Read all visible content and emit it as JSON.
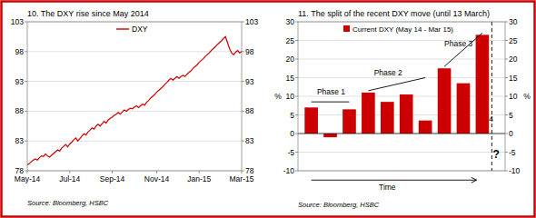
{
  "chart_data": [
    {
      "type": "line",
      "title": "10. The DXY rise since May 2014",
      "source": "Source: Bloomberg, HSBC",
      "categories": [
        "May-14",
        null,
        null,
        null,
        null,
        null,
        null,
        null,
        null,
        null,
        null,
        null,
        null,
        null,
        null,
        null,
        null,
        null,
        null,
        null,
        null,
        "Jul-14",
        null,
        null,
        null,
        null,
        null,
        null,
        null,
        null,
        null,
        null,
        null,
        null,
        null,
        null,
        null,
        null,
        null,
        null,
        null,
        null,
        "Sep-14",
        null,
        null,
        null,
        null,
        null,
        null,
        null,
        null,
        null,
        null,
        null,
        null,
        null,
        null,
        null,
        null,
        null,
        null,
        null,
        null,
        null,
        "Nov-14",
        null,
        null,
        null,
        null,
        null,
        null,
        null,
        null,
        null,
        null,
        null,
        null,
        null,
        null,
        null,
        null,
        null,
        null,
        null,
        null,
        "Jan-15",
        null,
        null,
        null,
        null,
        null,
        null,
        null,
        null,
        null,
        null,
        null,
        null,
        null,
        null,
        null,
        null,
        null,
        null,
        null,
        null,
        "Mar-15"
      ],
      "series": [
        {
          "name": "DXY",
          "color": "#cc0000",
          "values": [
            79.0,
            79.2,
            79.5,
            79.8,
            80.0,
            79.8,
            80.2,
            80.5,
            80.4,
            80.8,
            80.5,
            80.3,
            80.6,
            80.9,
            81.2,
            81.5,
            81.3,
            81.8,
            82.1,
            82.4,
            82.0,
            82.5,
            82.8,
            83.2,
            83.5,
            83.0,
            83.4,
            83.8,
            84.2,
            84.0,
            84.5,
            84.8,
            85.2,
            85.0,
            85.5,
            85.8,
            85.5,
            85.9,
            86.3,
            86.0,
            86.5,
            86.8,
            87.0,
            87.3,
            87.5,
            87.8,
            87.5,
            87.9,
            88.2,
            88.0,
            88.3,
            88.5,
            88.4,
            88.7,
            88.9,
            88.6,
            88.9,
            89.2,
            89.0,
            89.5,
            89.8,
            90.2,
            90.5,
            90.8,
            91.2,
            91.5,
            91.8,
            92.1,
            92.5,
            92.8,
            93.2,
            93.5,
            93.2,
            93.5,
            93.8,
            93.5,
            93.8,
            94.0,
            93.8,
            94.2,
            94.5,
            94.8,
            95.2,
            95.5,
            95.8,
            96.2,
            96.5,
            96.8,
            97.2,
            97.5,
            97.8,
            98.2,
            98.5,
            98.8,
            99.2,
            99.5,
            99.8,
            100.2,
            100.5,
            99.5,
            98.5,
            97.8,
            97.5,
            97.9,
            98.2,
            97.8,
            98.0
          ]
        }
      ],
      "ylim": [
        78,
        103
      ],
      "yticks": [
        78,
        83,
        88,
        93,
        98,
        103
      ],
      "y2lim": [
        78,
        103
      ],
      "y2ticks": [
        78,
        83,
        88,
        93,
        98,
        103
      ],
      "grid": true,
      "legend": "top"
    },
    {
      "type": "bar",
      "title": "11. The split of the recent DXY move (until 13 March)",
      "source": "Source: Bloomberg, HSBC",
      "ylabel": "%",
      "y2label": "%",
      "x": [
        1,
        2,
        3,
        4,
        5,
        6,
        7,
        8,
        9,
        10
      ],
      "series": [
        {
          "name": "Current DXY (May 14 - Mar 15)",
          "color": "#cc0000",
          "values": [
            7.0,
            -1.0,
            6.5,
            11.0,
            8.5,
            10.5,
            3.5,
            17.5,
            13.5,
            26.5
          ]
        }
      ],
      "xlim": [
        0.3,
        11.2
      ],
      "ylim": [
        -10,
        30
      ],
      "yticks": [
        -10,
        -5,
        0,
        5,
        10,
        15,
        20,
        25,
        30
      ],
      "y2lim": [
        -10,
        30
      ],
      "y2ticks": [
        -10,
        -5,
        0,
        5,
        10,
        15,
        20,
        25,
        30
      ],
      "grid": true,
      "legend": "top",
      "tick_labels": "y",
      "phase_lines": [
        {
          "x": [
            1,
            3
          ],
          "y": [
            8.5,
            8.5
          ]
        },
        {
          "x": [
            4,
            7
          ],
          "y": [
            11.5,
            15.0
          ]
        },
        {
          "x": [
            8,
            10
          ],
          "y": [
            18.0,
            27.0
          ]
        }
      ],
      "vline": {
        "x": 10.5,
        "line_style": "dashed"
      },
      "arrow": {
        "x": [
          1.0,
          9.7
        ],
        "y": -12.5
      },
      "annotations": [
        {
          "text": "Phase 1",
          "x": 1.3,
          "y": 10.5
        },
        {
          "text": "Phase 2",
          "x": 4.3,
          "y": 15.5
        },
        {
          "text": "Phase 3",
          "x": 8.0,
          "y": 23.5
        },
        {
          "text": "4",
          "x": 10.35,
          "y": 4.0
        },
        {
          "text": "?",
          "x": 10.55,
          "y": -5.5
        },
        {
          "text": "Time",
          "x": 5.0,
          "y": -13.5
        }
      ]
    }
  ]
}
